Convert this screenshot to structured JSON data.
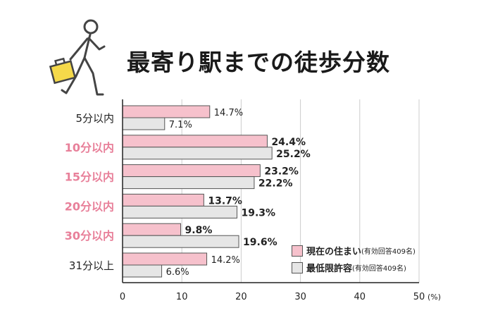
{
  "chart_data": {
    "type": "bar",
    "orientation": "horizontal",
    "title": "最寄り駅までの徒歩分数",
    "categories": [
      "5分以内",
      "10分以内",
      "15分以内",
      "20分以内",
      "30分以内",
      "31分以上"
    ],
    "highlighted_categories": [
      "10分以内",
      "15分以内",
      "20分以内",
      "30分以内"
    ],
    "series": [
      {
        "name": "現在の住まい",
        "note": "(有効回答409名)",
        "values": [
          14.7,
          24.4,
          23.2,
          13.7,
          9.8,
          14.2
        ],
        "labels": [
          "14.7%",
          "24.4%",
          "23.2%",
          "13.7%",
          "9.8%",
          "14.2%"
        ],
        "color": "#f6c1cc"
      },
      {
        "name": "最低限許容",
        "note": "(有効回答409名)",
        "values": [
          7.1,
          25.2,
          22.2,
          19.3,
          19.6,
          6.6
        ],
        "labels": [
          "7.1%",
          "25.2%",
          "22.2%",
          "19.3%",
          "19.6%",
          "6.6%"
        ],
        "color": "#e6e6e6"
      }
    ],
    "xlim": [
      0,
      50
    ],
    "xticks": [
      "0",
      "10",
      "20",
      "30",
      "40",
      "50"
    ],
    "xunit": "(%)",
    "grid": true,
    "legend": "bottom-right",
    "colors": {
      "highlight_label": "#e8809a",
      "normal_label": "#222222",
      "grid": "#cccccc",
      "bar_border": "#555555"
    }
  }
}
